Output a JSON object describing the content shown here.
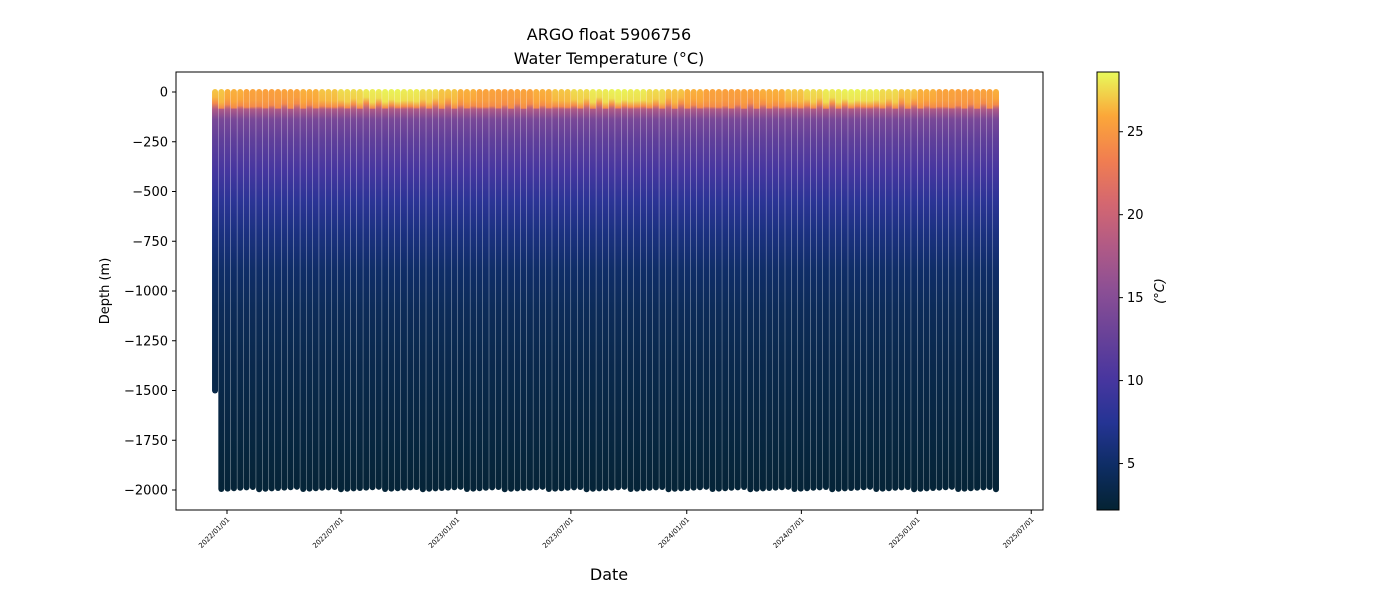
{
  "chart_data": {
    "type": "scatter",
    "title": "ARGO float 5906756",
    "subtitle": "Water Temperature (°C)",
    "xlabel": "Date",
    "ylabel": "Depth (m)",
    "xlim": [
      "2021-10-12",
      "2025-07-19"
    ],
    "ylim": [
      -2100,
      100
    ],
    "x_ticks": [
      "2022/01/01",
      "2022/07/01",
      "2023/01/01",
      "2023/07/01",
      "2024/01/01",
      "2024/07/01",
      "2025/01/01",
      "2025/07/01"
    ],
    "y_ticks": [
      0,
      -250,
      -500,
      -750,
      -1000,
      -1250,
      -1500,
      -1750,
      -2000
    ],
    "y_tick_labels": [
      "0",
      "−250",
      "−500",
      "−750",
      "−1000",
      "−1250",
      "−1500",
      "−1750",
      "−2000"
    ],
    "colorbar": {
      "label": "(°C)",
      "range": [
        2.2,
        28.6
      ],
      "ticks": [
        5,
        10,
        15,
        20,
        25
      ],
      "tick_labels": [
        "5",
        "10",
        "15",
        "20",
        "25"
      ],
      "colormap": [
        "#042333",
        "#0e2d64",
        "#253494",
        "#48369f",
        "#694298",
        "#8b4f95",
        "#b05a86",
        "#d46770",
        "#f17e50",
        "#fba739",
        "#e8fa5b"
      ]
    },
    "profiles": {
      "first_date": "2021-12-13",
      "interval_days": 10,
      "count": 125,
      "first_profile_max_depth_m": 1500,
      "typical_max_depth_m": 1990,
      "representative_temperature_profile": {
        "depth_m": [
          0,
          40,
          70,
          100,
          150,
          250,
          400,
          550,
          700,
          900,
          1100,
          1400,
          2000
        ],
        "temp_c": [
          27,
          26.5,
          24,
          18,
          14,
          12,
          10,
          8,
          6.5,
          5,
          4.2,
          3.5,
          2.4
        ]
      },
      "surface_temp_seasonal": {
        "mean_c": 27,
        "amplitude_c": 1.4,
        "peak_month": 9
      }
    }
  }
}
